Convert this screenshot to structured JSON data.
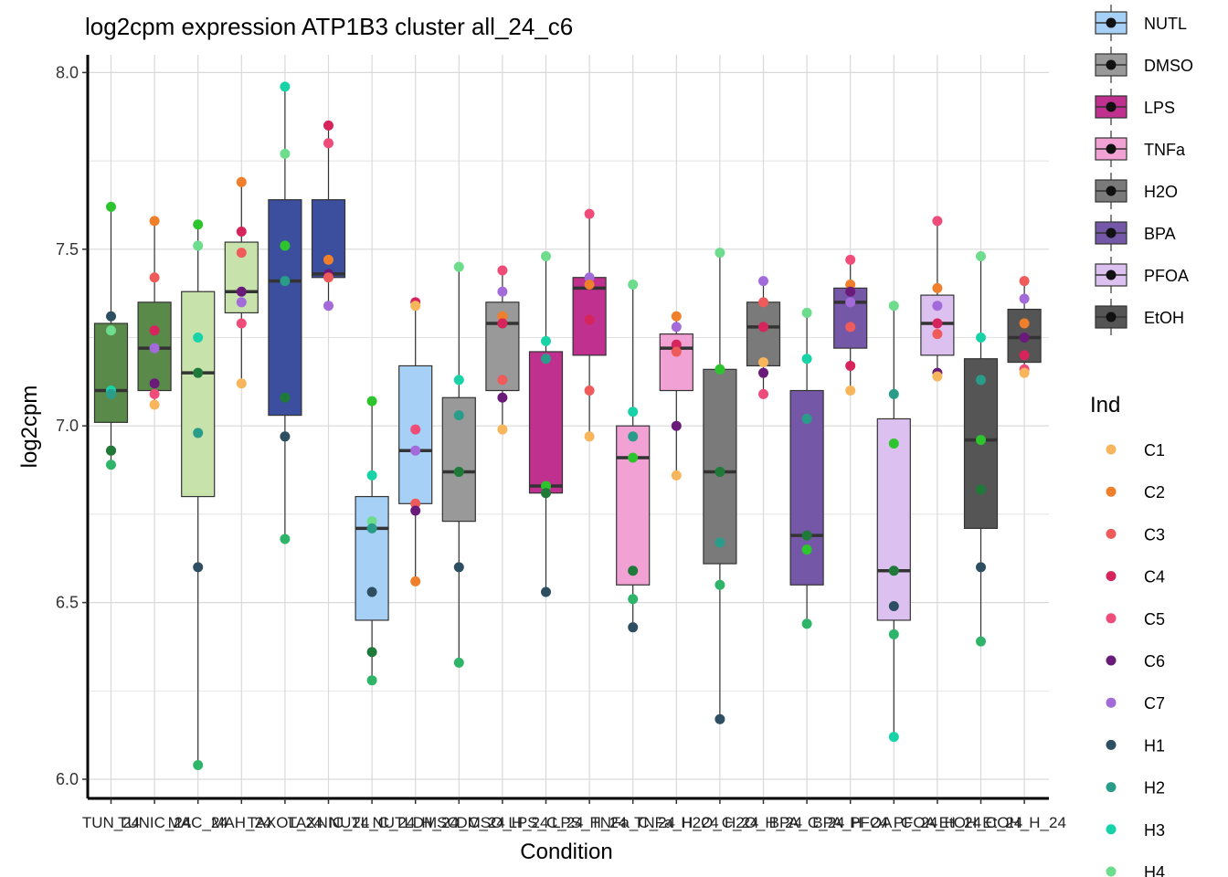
{
  "chart_data": {
    "type": "boxplot",
    "title": "log2cpm expression ATP1B3 cluster all_24_c6",
    "xlabel": "Condition",
    "ylabel": "log2cpm",
    "ylim": [
      5.95,
      8.15
    ],
    "yticks": [
      "6.0",
      "6.5",
      "7.0",
      "7.5",
      "8.0"
    ],
    "x_tick_labels": [
      "TUN_24",
      "TUNIC_24",
      "MAC_24",
      "MAH_24",
      "TAXOL_24",
      "TAXNIC_24",
      "NUTL_C_24",
      "NUTL_H_24",
      "DMSO_C_24",
      "DMSO_H_24",
      "LPS_C_24",
      "LPS_H_24",
      "TNFa_C_24",
      "TNFa_H_24",
      "H2O_C_24",
      "H2O_H_24",
      "BPA_C_24",
      "BPA_H_24",
      "PFOA_C_24",
      "PFOA_H_24",
      "EtOH_C_24",
      "EtOH_H_24"
    ],
    "groups": [
      {
        "name": "TUN_24",
        "treatment": "Other",
        "fill": "#5a8a4a",
        "box": [
          7.01,
          7.1,
          7.29
        ],
        "whisker": [
          6.89,
          7.62
        ],
        "points": {
          "H1": 7.31,
          "H4": 7.27,
          "H3": 7.1,
          "H2": 7.09,
          "C6": 6.93,
          "C1": 6.93,
          "H5": 6.93,
          "H6": 6.89,
          "H7": 7.62
        }
      },
      {
        "name": "TUNIC_24",
        "treatment": "Other",
        "fill": "#5a8a4a",
        "box": [
          7.1,
          7.22,
          7.35
        ],
        "whisker": [
          7.06,
          7.58
        ],
        "points": {
          "C2": 7.58,
          "C3": 7.42,
          "C4": 7.27,
          "C7": 7.22,
          "C6": 7.12,
          "C5": 7.09,
          "C1": 7.06
        }
      },
      {
        "name": "MAC_24",
        "treatment": "Other",
        "fill": "#c7e3ab",
        "box": [
          6.8,
          7.15,
          7.38
        ],
        "whisker": [
          6.04,
          7.57
        ],
        "points": {
          "H7": 7.57,
          "H4": 7.51,
          "H3": 7.25,
          "H5": 7.15,
          "H2": 6.98,
          "H1": 6.6,
          "H6": 6.04
        }
      },
      {
        "name": "MAH_24",
        "treatment": "Other",
        "fill": "#c7e3ab",
        "box": [
          7.32,
          7.38,
          7.52
        ],
        "whisker": [
          7.12,
          7.69
        ],
        "points": {
          "C2": 7.69,
          "C4": 7.55,
          "C3": 7.49,
          "C6": 7.38,
          "C7": 7.35,
          "C5": 7.29,
          "C1": 7.12
        }
      },
      {
        "name": "TAXOL_24",
        "treatment": "Other",
        "fill": "#3b4f9e",
        "box": [
          7.03,
          7.41,
          7.64
        ],
        "whisker": [
          6.68,
          7.96
        ],
        "points": {
          "H3": 7.96,
          "H4": 7.77,
          "H7": 7.51,
          "H2": 7.41,
          "H5": 7.08,
          "H1": 6.97,
          "H6": 6.68
        }
      },
      {
        "name": "TAXNIC_24",
        "treatment": "Other",
        "fill": "#3b4f9e",
        "box": [
          7.42,
          7.43,
          7.64
        ],
        "whisker": [
          7.34,
          7.85
        ],
        "points": {
          "C4": 7.85,
          "C5": 7.8,
          "C2": 7.47,
          "C6": 7.43,
          "C3": 7.42,
          "C7": 7.34
        }
      },
      {
        "name": "NUTL_C_24",
        "treatment": "NUTL",
        "fill": "#a6d0f5",
        "box": [
          6.45,
          6.71,
          6.8
        ],
        "whisker": [
          6.28,
          7.07
        ],
        "points": {
          "H7": 7.07,
          "H3": 6.86,
          "H4": 6.73,
          "H2": 6.71,
          "H1": 6.53,
          "H5": 6.36,
          "H6": 6.28
        }
      },
      {
        "name": "NUTL_H_24",
        "treatment": "NUTL",
        "fill": "#a6d0f5",
        "box": [
          6.78,
          6.93,
          7.17
        ],
        "whisker": [
          6.56,
          7.35
        ],
        "points": {
          "C4": 7.35,
          "C1": 7.34,
          "C5": 6.99,
          "C7": 6.93,
          "C3": 6.78,
          "C6": 6.76,
          "C2": 6.56
        }
      },
      {
        "name": "DMSO_C_24",
        "treatment": "DMSO",
        "fill": "#999999",
        "box": [
          6.73,
          6.87,
          7.08
        ],
        "whisker": [
          6.33,
          7.45
        ],
        "points": {
          "H4": 7.45,
          "H3": 7.13,
          "H2": 7.03,
          "H7": 6.87,
          "H5": 6.87,
          "H1": 6.6,
          "H6": 6.33
        }
      },
      {
        "name": "DMSO_H_24",
        "treatment": "DMSO",
        "fill": "#999999",
        "box": [
          7.1,
          7.29,
          7.35
        ],
        "whisker": [
          6.99,
          7.44
        ],
        "points": {
          "C5": 7.44,
          "C7": 7.38,
          "C2": 7.31,
          "C4": 7.29,
          "C3": 7.13,
          "C6": 7.08,
          "C1": 6.99
        }
      },
      {
        "name": "LPS_C_24",
        "treatment": "LPS",
        "fill": "#c0308e",
        "box": [
          6.81,
          6.83,
          7.21
        ],
        "whisker": [
          6.53,
          7.48
        ],
        "points": {
          "H4": 7.48,
          "H3": 7.24,
          "H2": 7.19,
          "H7": 6.83,
          "H5": 6.81,
          "H1": 6.53
        }
      },
      {
        "name": "LPS_H_24",
        "treatment": "LPS",
        "fill": "#c0308e",
        "box": [
          7.2,
          7.39,
          7.42
        ],
        "whisker": [
          6.97,
          7.6
        ],
        "points": {
          "C5": 7.6,
          "C7": 7.42,
          "C2": 7.4,
          "C4": 7.3,
          "C3": 7.1,
          "C1": 6.97
        }
      },
      {
        "name": "TNFa_C_24",
        "treatment": "TNFa",
        "fill": "#f2a1d4",
        "box": [
          6.55,
          6.91,
          7.0
        ],
        "whisker": [
          6.43,
          7.4
        ],
        "points": {
          "H4": 7.4,
          "H3": 7.04,
          "H2": 6.97,
          "H7": 6.91,
          "H5": 6.59,
          "H6": 6.51,
          "H1": 6.43
        }
      },
      {
        "name": "TNFa_H_24",
        "treatment": "TNFa",
        "fill": "#f2a1d4",
        "box": [
          7.1,
          7.22,
          7.26
        ],
        "whisker": [
          6.86,
          7.31
        ],
        "points": {
          "C2": 7.31,
          "C7": 7.28,
          "C4": 7.23,
          "C3": 7.21,
          "C6": 7.0,
          "C1": 6.86
        }
      },
      {
        "name": "H2O_C_24",
        "treatment": "H2O",
        "fill": "#7a7a7a",
        "box": [
          6.61,
          6.87,
          7.16
        ],
        "whisker": [
          6.17,
          7.49
        ],
        "points": {
          "H4": 7.49,
          "H7": 7.16,
          "H5": 6.87,
          "H2": 6.67,
          "H6": 6.55,
          "H1": 6.17
        }
      },
      {
        "name": "H2O_H_24",
        "treatment": "H2O",
        "fill": "#7a7a7a",
        "box": [
          7.17,
          7.28,
          7.35
        ],
        "whisker": [
          7.09,
          7.41
        ],
        "points": {
          "C7": 7.41,
          "C3": 7.35,
          "C4": 7.28,
          "C1": 7.18,
          "C6": 7.15,
          "C5": 7.09
        }
      },
      {
        "name": "BPA_C_24",
        "treatment": "BPA",
        "fill": "#7557a8",
        "box": [
          6.55,
          6.69,
          7.1
        ],
        "whisker": [
          6.44,
          7.32
        ],
        "points": {
          "H4": 7.32,
          "H3": 7.19,
          "H2": 7.02,
          "H5": 6.69,
          "H7": 6.65,
          "H6": 6.44
        }
      },
      {
        "name": "BPA_H_24",
        "treatment": "BPA",
        "fill": "#7557a8",
        "box": [
          7.22,
          7.35,
          7.39
        ],
        "whisker": [
          7.1,
          7.47
        ],
        "points": {
          "C5": 7.47,
          "C2": 7.4,
          "C6": 7.38,
          "C7": 7.35,
          "C3": 7.28,
          "C4": 7.17,
          "C1": 7.1
        }
      },
      {
        "name": "PFOA_C_24",
        "treatment": "PFOA",
        "fill": "#dcc1f0",
        "box": [
          6.45,
          6.59,
          7.02
        ],
        "whisker": [
          6.12,
          7.34
        ],
        "points": {
          "H4": 7.34,
          "H2": 7.09,
          "H7": 6.95,
          "H5": 6.59,
          "H1": 6.49,
          "H6": 6.41,
          "H3": 6.12
        }
      },
      {
        "name": "PFOA_H_24",
        "treatment": "PFOA",
        "fill": "#dcc1f0",
        "box": [
          7.2,
          7.29,
          7.37
        ],
        "whisker": [
          7.14,
          7.58
        ],
        "points": {
          "C5": 7.58,
          "C2": 7.39,
          "C7": 7.34,
          "C4": 7.29,
          "C3": 7.26,
          "C6": 7.15,
          "C1": 7.14
        }
      },
      {
        "name": "EtOH_C_24",
        "treatment": "EtOH",
        "fill": "#555555",
        "box": [
          6.71,
          6.96,
          7.19
        ],
        "whisker": [
          6.39,
          7.48
        ],
        "points": {
          "H4": 7.48,
          "H3": 7.25,
          "H2": 7.13,
          "H7": 6.96,
          "H5": 6.82,
          "H1": 6.6,
          "H6": 6.39
        }
      },
      {
        "name": "EtOH_H_24",
        "treatment": "EtOH",
        "fill": "#555555",
        "box": [
          7.18,
          7.25,
          7.33
        ],
        "whisker": [
          7.15,
          7.41
        ],
        "points": {
          "C3": 7.41,
          "C7": 7.36,
          "C2": 7.29,
          "C6": 7.25,
          "C4": 7.2,
          "C5": 7.16,
          "C1": 7.15
        }
      }
    ],
    "legend_condition": {
      "position": "right-top",
      "entries": [
        {
          "label": "NUTL",
          "fill": "#a6d0f5"
        },
        {
          "label": "DMSO",
          "fill": "#999999"
        },
        {
          "label": "LPS",
          "fill": "#c0308e"
        },
        {
          "label": "TNFa",
          "fill": "#f2a1d4"
        },
        {
          "label": "H2O",
          "fill": "#7a7a7a"
        },
        {
          "label": "BPA",
          "fill": "#7557a8"
        },
        {
          "label": "PFOA",
          "fill": "#dcc1f0"
        },
        {
          "label": "EtOH",
          "fill": "#555555"
        }
      ]
    },
    "legend_ind": {
      "title": "Ind",
      "position": "right",
      "entries": [
        {
          "label": "C1",
          "color": "#f7b55c"
        },
        {
          "label": "C2",
          "color": "#f07f2b"
        },
        {
          "label": "C3",
          "color": "#ef5b5b"
        },
        {
          "label": "C4",
          "color": "#d6245c"
        },
        {
          "label": "C5",
          "color": "#f04c7a"
        },
        {
          "label": "C6",
          "color": "#6a1b7a"
        },
        {
          "label": "C7",
          "color": "#a36bd9"
        },
        {
          "label": "H1",
          "color": "#2e4f62"
        },
        {
          "label": "H2",
          "color": "#2a9d8a"
        },
        {
          "label": "H3",
          "color": "#19d3a8"
        },
        {
          "label": "H4",
          "color": "#6ddc8c"
        }
      ]
    },
    "extra_point_colors": {
      "H5": "#1f7a3a",
      "H6": "#2fb56a",
      "H7": "#2ec42e"
    }
  }
}
